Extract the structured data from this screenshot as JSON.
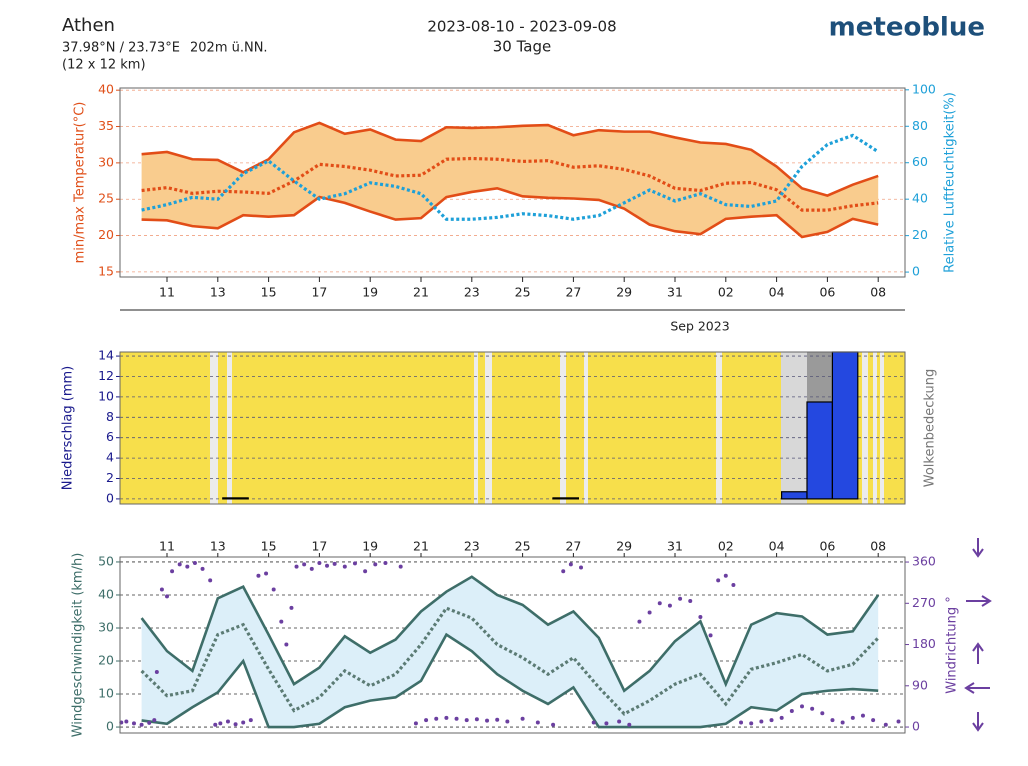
{
  "header": {
    "location": "Athen",
    "coords": "37.98°N / 23.73°E",
    "elevation": "202m ü.NN.",
    "resolution": "(12 x 12 km)",
    "period": "2023-08-10 - 2023-09-08",
    "duration": "30 Tage",
    "brand": "meteoblue"
  },
  "chart_data": [
    {
      "type": "line",
      "ylabel": "min/max Temperatur(°C)",
      "y2label": "Relative Luftfeuchtigkeit(%)",
      "x_sublabel": "Sep 2023",
      "categories": [
        null,
        "11",
        null,
        "13",
        null,
        "15",
        null,
        "17",
        null,
        "19",
        null,
        "21",
        null,
        "23",
        null,
        "25",
        null,
        "27",
        null,
        "29",
        null,
        "31",
        null,
        "02",
        null,
        "04",
        null,
        "06",
        null,
        "08"
      ],
      "ylim": [
        14.3,
        40.3
      ],
      "yticks": [
        15,
        20,
        25,
        30,
        35,
        40
      ],
      "y2lim": [
        -2.7,
        101
      ],
      "y2ticks": [
        0,
        20,
        40,
        60,
        80,
        100
      ],
      "grid": true,
      "grid_color": "#f0a080",
      "ytick_color": "#e0501a",
      "y2tick_color": "#1ea0d8",
      "band_color": "#f9cc8e",
      "series": [
        {
          "color": "#e24d17",
          "dash": "solid",
          "values": [
            31.2,
            31.5,
            30.5,
            30.4,
            28.7,
            30.5,
            34.2,
            35.5,
            34,
            34.6,
            33.2,
            33,
            34.9,
            34.8,
            34.9,
            35.1,
            35.2,
            33.8,
            34.5,
            34.3,
            34.3,
            33.5,
            32.8,
            32.6,
            31.8,
            29.5,
            26.5,
            25.5,
            27,
            28.2
          ]
        },
        {
          "color": "#e24d17",
          "dash": "solid",
          "values": [
            22.2,
            22.1,
            21.3,
            21.0,
            22.8,
            22.6,
            22.8,
            25.3,
            24.5,
            23.3,
            22.2,
            22.4,
            25.3,
            26,
            26.5,
            25.4,
            25.2,
            25.1,
            24.9,
            23.7,
            21.5,
            20.6,
            20.2,
            22.3,
            22.6,
            22.8,
            19.8,
            20.5,
            22.3,
            21.5
          ]
        },
        {
          "color": "#e24d17",
          "dash": "dotted",
          "values": [
            26.2,
            26.6,
            25.8,
            26.1,
            26,
            25.8,
            27.5,
            29.8,
            29.5,
            29,
            28.2,
            28.3,
            30.5,
            30.6,
            30.5,
            30.2,
            30.3,
            29.4,
            29.6,
            29.1,
            28.2,
            26.5,
            26.2,
            27.2,
            27.3,
            26.3,
            23.5,
            23.5,
            24.1,
            24.5
          ]
        },
        {
          "color": "#1ea0d8",
          "dash": "dotted",
          "axis": "y2",
          "values": [
            34,
            37,
            41,
            40,
            54,
            61,
            50,
            40,
            43,
            49,
            47,
            43,
            29,
            29,
            30,
            32,
            31,
            29,
            31,
            38,
            45,
            39,
            43,
            37,
            36,
            39,
            58,
            70,
            75,
            66
          ]
        }
      ]
    },
    {
      "type": "bar",
      "ylabel": "Niederschlag (mm)",
      "y2label": "Wolkenbedeckung",
      "ylim": [
        -0.5,
        14.4
      ],
      "yticks": [
        0,
        2,
        4,
        6,
        8,
        10,
        12,
        14
      ],
      "grid": true,
      "grid_color": "#555577",
      "ytick_color": "#1a1a8c",
      "background": "#f7df4b",
      "color": "#2448e0",
      "values": [
        0,
        0,
        0,
        0.1,
        0,
        0,
        0,
        0,
        0,
        0,
        0,
        0,
        0,
        0,
        0,
        0,
        0.1,
        0,
        0,
        0,
        0,
        0,
        0,
        0,
        0,
        0.7,
        9.5,
        14.4,
        0,
        0
      ]
    },
    {
      "type": "line",
      "ylabel": "Windgeschwindigkeit (km/h)",
      "y2label": "Windrichtung °",
      "categories": [
        null,
        "11",
        null,
        "13",
        null,
        "15",
        null,
        "17",
        null,
        "19",
        null,
        "21",
        null,
        "23",
        null,
        "25",
        null,
        "27",
        null,
        "29",
        null,
        "31",
        null,
        "02",
        null,
        "04",
        null,
        "06",
        null,
        "08"
      ],
      "ylim": [
        -1.8,
        51.5
      ],
      "yticks": [
        0,
        10,
        20,
        30,
        40,
        50
      ],
      "y2lim": [
        -13,
        371
      ],
      "y2ticks": [
        0,
        90,
        180,
        270,
        360
      ],
      "grid": true,
      "grid_color": "#333333",
      "ytick_color": "#3e6e69",
      "y2tick_color": "#6b3fa0",
      "band_color": "#dceff9",
      "series": [
        {
          "color": "#3e6e69",
          "dash": "solid",
          "values": [
            33,
            23,
            17,
            39,
            42.5,
            28,
            13,
            18,
            27.5,
            22.5,
            26.5,
            35,
            41,
            45.5,
            40,
            37,
            31,
            35,
            27,
            11,
            17,
            26,
            32,
            13,
            31,
            34.5,
            33.5,
            28,
            29,
            40
          ]
        },
        {
          "color": "#3e6e69",
          "dash": "solid",
          "values": [
            2,
            1,
            6,
            10.5,
            20,
            0,
            0,
            1,
            6,
            8,
            9,
            14,
            28,
            23,
            16,
            11,
            7,
            12,
            0,
            0,
            0,
            0,
            0,
            1,
            6,
            5,
            10,
            11,
            11.5,
            11
          ]
        },
        {
          "color": "#5b7b74",
          "dash": "dotted",
          "values": [
            17,
            9.5,
            11,
            28,
            31,
            17.5,
            5,
            9,
            17,
            12.5,
            16,
            25,
            36,
            33,
            25,
            21,
            16,
            21,
            12,
            4,
            8,
            13,
            16,
            7,
            17.5,
            19.5,
            22,
            17,
            19,
            27
          ]
        },
        {
          "color": "#6b3fa0",
          "dash": "dots",
          "axis": "y2",
          "x": [
            -0.8,
            -0.6,
            -0.3,
            0,
            0.3,
            0.5,
            0.6,
            0.8,
            1.0,
            1.2,
            1.5,
            1.8,
            2.1,
            2.4,
            2.7,
            2.9,
            3.1,
            3.4,
            3.7,
            4.0,
            4.3,
            4.6,
            4.9,
            5.2,
            5.5,
            5.7,
            5.9,
            6.1,
            6.4,
            6.7,
            7.0,
            7.3,
            7.6,
            8.0,
            8.4,
            8.8,
            9.2,
            9.6,
            10.2,
            10.8,
            11.2,
            11.6,
            12.0,
            12.4,
            12.8,
            13.2,
            13.6,
            14.0,
            14.4,
            15.0,
            15.6,
            16.2,
            16.6,
            16.9,
            17.3,
            17.8,
            18.3,
            18.8,
            19.2,
            19.6,
            20.0,
            20.4,
            20.8,
            21.2,
            21.6,
            22.0,
            22.4,
            22.7,
            23.0,
            23.3,
            23.6,
            24.0,
            24.4,
            24.8,
            25.2,
            25.6,
            26.0,
            26.4,
            26.8,
            27.2,
            27.6,
            28.0,
            28.4,
            28.8,
            29.3,
            29.8
          ],
          "values": [
            10,
            12,
            8,
            5,
            9,
            15,
            120,
            300,
            285,
            340,
            355,
            350,
            358,
            345,
            320,
            5,
            8,
            12,
            6,
            10,
            15,
            330,
            335,
            300,
            230,
            180,
            260,
            350,
            355,
            345,
            358,
            352,
            356,
            350,
            357,
            340,
            355,
            358,
            350,
            8,
            15,
            18,
            20,
            18,
            15,
            17,
            14,
            16,
            12,
            18,
            10,
            5,
            340,
            355,
            348,
            10,
            8,
            12,
            5,
            230,
            250,
            270,
            265,
            280,
            275,
            240,
            200,
            320,
            330,
            310,
            10,
            8,
            12,
            15,
            20,
            35,
            45,
            40,
            30,
            15,
            10,
            20,
            25,
            15,
            5,
            12
          ]
        }
      ]
    }
  ]
}
